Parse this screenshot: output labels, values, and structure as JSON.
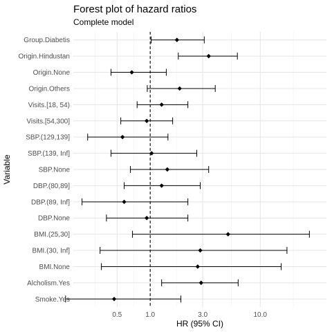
{
  "chart_data": {
    "type": "forest",
    "title": "Forest plot of hazard ratios",
    "subtitle": "Complete model",
    "xlabel": "HR (95% CI)",
    "ylabel": "Variable",
    "x_scale": "log",
    "xlim": [
      0.2,
      40
    ],
    "x_ticks": [
      0.5,
      1.0,
      3.0,
      10.0
    ],
    "x_tick_labels": [
      "0.5",
      "1.0",
      "3.0",
      "10.0"
    ],
    "reference_line": 1.0,
    "grid": true,
    "rows": [
      {
        "label": "Group.Diabetis",
        "hr": 1.75,
        "lo": 1.02,
        "hi": 3.1
      },
      {
        "label": "Origin.Hindustan",
        "hr": 3.4,
        "lo": 1.8,
        "hi": 6.2
      },
      {
        "label": "Origin.None",
        "hr": 0.68,
        "lo": 0.44,
        "hi": 1.4
      },
      {
        "label": "Origin.Others",
        "hr": 1.85,
        "lo": 0.94,
        "hi": 3.9
      },
      {
        "label": "Visits.[18, 54)",
        "hr": 1.27,
        "lo": 0.76,
        "hi": 2.2
      },
      {
        "label": "Visits.[54,300]",
        "hr": 0.93,
        "lo": 0.54,
        "hi": 1.6
      },
      {
        "label": "SBP.(129,139]",
        "hr": 0.56,
        "lo": 0.27,
        "hi": 1.45
      },
      {
        "label": "SBP.(139, Inf]",
        "hr": 1.03,
        "lo": 0.44,
        "hi": 2.65
      },
      {
        "label": "SBP.None",
        "hr": 1.43,
        "lo": 0.66,
        "hi": 3.4
      },
      {
        "label": "DBP.(80,89]",
        "hr": 1.27,
        "lo": 0.58,
        "hi": 2.85
      },
      {
        "label": "DBP.(89, Inf]",
        "hr": 0.58,
        "lo": 0.24,
        "hi": 2.2
      },
      {
        "label": "DBP.None",
        "hr": 0.93,
        "lo": 0.4,
        "hi": 2.2
      },
      {
        "label": "BMI.(25,30]",
        "hr": 5.1,
        "lo": 0.69,
        "hi": 28
      },
      {
        "label": "BMI.(30, Inf]",
        "hr": 2.85,
        "lo": 0.35,
        "hi": 17.5
      },
      {
        "label": "BMI.None",
        "hr": 2.7,
        "lo": 0.36,
        "hi": 15.5
      },
      {
        "label": "Alcholism.Yes",
        "hr": 2.9,
        "lo": 1.27,
        "hi": 6.3
      },
      {
        "label": "Smoke.Yes",
        "hr": 0.47,
        "lo": 0.17,
        "hi": 1.9
      }
    ]
  }
}
